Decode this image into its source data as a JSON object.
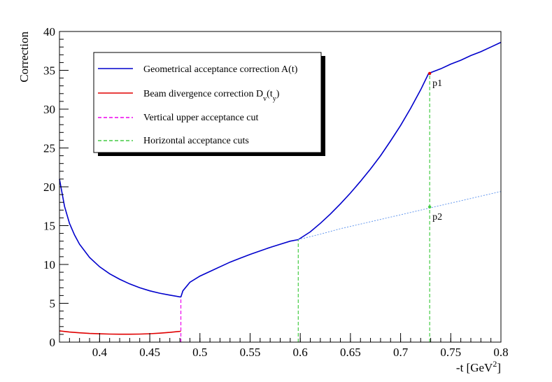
{
  "chart_data": {
    "type": "line",
    "title": "",
    "xlabel_main": "-t [GeV",
    "xlabel_sup": "2",
    "xlabel_end": "]",
    "ylabel": "Correction",
    "xlim": [
      0.36,
      0.8
    ],
    "ylim": [
      0,
      40
    ],
    "x_ticks": [
      "0.4",
      "0.45",
      "0.5",
      "0.55",
      "0.6",
      "0.65",
      "0.7",
      "0.75",
      "0.8"
    ],
    "x_tick_values": [
      0.4,
      0.45,
      0.5,
      0.55,
      0.6,
      0.65,
      0.7,
      0.75,
      0.8
    ],
    "y_ticks": [
      "0",
      "5",
      "10",
      "15",
      "20",
      "25",
      "30",
      "35",
      "40"
    ],
    "y_tick_values": [
      0,
      5,
      10,
      15,
      20,
      25,
      30,
      35,
      40
    ],
    "grid": false,
    "legend_placement": "top-left",
    "legend": [
      {
        "label": "Geometrical acceptance correction A(t)",
        "color": "#0000cc",
        "style": "solid"
      },
      {
        "label_main": "Beam divergence correction D",
        "label_sub1": "v",
        "label_mid": "(t",
        "label_sub2": "y",
        "label_end": ")",
        "color": "#e00000",
        "style": "solid"
      },
      {
        "label": "Vertical upper acceptance cut",
        "color": "#ee00ee",
        "style": "dashed"
      },
      {
        "label": "Horizontal acceptance cuts",
        "color": "#44cc44",
        "style": "dashed"
      }
    ],
    "series": [
      {
        "color": "#0000cc",
        "style": "solid",
        "x": [
          0.36,
          0.365,
          0.37,
          0.375,
          0.38,
          0.39,
          0.4,
          0.41,
          0.42,
          0.43,
          0.44,
          0.45,
          0.46,
          0.47,
          0.481
        ],
        "y": [
          21.0,
          17.5,
          15.3,
          13.8,
          12.6,
          10.9,
          9.7,
          8.8,
          8.1,
          7.5,
          7.0,
          6.6,
          6.3,
          6.05,
          5.8
        ]
      },
      {
        "color": "#0000cc",
        "style": "solid",
        "x": [
          0.481,
          0.483,
          0.49,
          0.5,
          0.51,
          0.52,
          0.53,
          0.54,
          0.55,
          0.56,
          0.57,
          0.58,
          0.59,
          0.598
        ],
        "y": [
          5.8,
          6.6,
          7.7,
          8.5,
          9.1,
          9.7,
          10.3,
          10.8,
          11.3,
          11.75,
          12.2,
          12.6,
          13.0,
          13.2
        ]
      },
      {
        "color": "#0000cc",
        "style": "solid",
        "x": [
          0.598,
          0.61,
          0.62,
          0.63,
          0.64,
          0.65,
          0.66,
          0.67,
          0.68,
          0.69,
          0.7,
          0.71,
          0.72,
          0.728
        ],
        "y": [
          13.2,
          14.2,
          15.3,
          16.5,
          17.8,
          19.2,
          20.7,
          22.3,
          24.0,
          25.9,
          27.9,
          30.1,
          32.5,
          34.6
        ]
      },
      {
        "color": "#0000cc",
        "style": "solid",
        "x": [
          0.728,
          0.74,
          0.75,
          0.76,
          0.77,
          0.78,
          0.79,
          0.8
        ],
        "y": [
          34.6,
          35.2,
          35.8,
          36.3,
          36.9,
          37.4,
          38.0,
          38.6
        ]
      },
      {
        "color": "#e00000",
        "style": "solid",
        "x": [
          0.36,
          0.37,
          0.38,
          0.39,
          0.4,
          0.41,
          0.42,
          0.43,
          0.44,
          0.45,
          0.46,
          0.47,
          0.481
        ],
        "y": [
          1.45,
          1.3,
          1.2,
          1.12,
          1.07,
          1.04,
          1.02,
          1.02,
          1.04,
          1.08,
          1.15,
          1.25,
          1.4
        ]
      },
      {
        "color": "#6699ee",
        "style": "dotted",
        "x": [
          0.598,
          0.62,
          0.64,
          0.66,
          0.68,
          0.7,
          0.72,
          0.74,
          0.76,
          0.78,
          0.8
        ],
        "y": [
          13.2,
          13.9,
          14.6,
          15.2,
          15.8,
          16.4,
          17.0,
          17.6,
          18.2,
          18.8,
          19.4
        ]
      }
    ],
    "vertical_cuts": [
      {
        "x": 0.481,
        "y_from": 0,
        "y_to": 5.8,
        "color": "#ee00ee"
      },
      {
        "x": 0.598,
        "y_from": 0,
        "y_to": 13.2,
        "color": "#44cc44"
      },
      {
        "x": 0.729,
        "y_from": 0,
        "y_to": 34.6,
        "color": "#44cc44"
      }
    ],
    "annotations": [
      {
        "label": "p1",
        "x": 0.729,
        "y": 34.6,
        "color": "#e00000"
      },
      {
        "label": "p2",
        "x": 0.729,
        "y": 17.4,
        "color": "#44cc44"
      }
    ]
  }
}
